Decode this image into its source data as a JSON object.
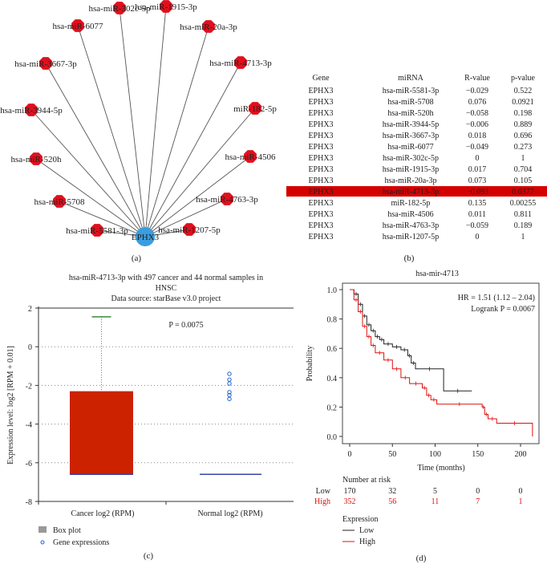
{
  "panel_a": {
    "caption": "(a)",
    "center": "EPHX3",
    "center_color": "#3a9de0",
    "node_color": "#e0101e",
    "nodes": [
      "hsa-miR-302c-5p",
      "hsa-miR-1915-3p",
      "hsa-miR-6077",
      "hsa-miR-20a-3p",
      "hsa-miR-3667-3p",
      "hsa-miR-4713-3p",
      "hsa-miR-3944-5p",
      "miR-182-5p",
      "hsa-miR-520h",
      "hsa-miR-4506",
      "hsa-miR-5708",
      "hsa-miR-4763-3p",
      "hsa-miR-5581-3p",
      "hsa-miR-1207-5p"
    ]
  },
  "panel_b": {
    "caption": "(b)",
    "headers": [
      "Gene",
      "miRNA",
      "R-value",
      "p-value"
    ],
    "highlight_row": 9,
    "highlight_color": "#d40000",
    "rows": [
      [
        "EPHX3",
        "hsa-miR-5581-3p",
        "−0.029",
        "0.522"
      ],
      [
        "EPHX3",
        "hsa-miR-5708",
        "0.076",
        "0.0921"
      ],
      [
        "EPHX3",
        "hsa-miR-520h",
        "−0.058",
        "0.198"
      ],
      [
        "EPHX3",
        "hsa-miR-3944-5p",
        "−0.006",
        "0.889"
      ],
      [
        "EPHX3",
        "hsa-miR-3667-3p",
        "0.018",
        "0.696"
      ],
      [
        "EPHX3",
        "hsa-miR-6077",
        "−0.049",
        "0.273"
      ],
      [
        "EPHX3",
        "hsa-miR-302c-5p",
        "0",
        "1"
      ],
      [
        "EPHX3",
        "hsa-miR-1915-3p",
        "0.017",
        "0.704"
      ],
      [
        "EPHX3",
        "hsa-miR-20a-3p",
        "0.073",
        "0.105"
      ],
      [
        "EPHX3",
        "hsa-miR-4713-3p",
        "−0.093",
        "0.0377"
      ],
      [
        "EPHX3",
        "miR-182-5p",
        "0.135",
        "0.00255"
      ],
      [
        "EPHX3",
        "hsa-miR-4506",
        "0.011",
        "0.811"
      ],
      [
        "EPHX3",
        "hsa-miR-4763-3p",
        "−0.059",
        "0.189"
      ],
      [
        "EPHX3",
        "hsa-miR-1207-5p",
        "0",
        "1"
      ]
    ]
  },
  "chart_data": [
    {
      "type": "box",
      "caption": "(c)",
      "title": [
        "hsa-miR-4713-3p with 497 cancer and 44 normal samples in",
        "HNSC",
        "Data source: starBase v3.0 project"
      ],
      "ylabel": "Expression level: log2 [RPM + 0.01]",
      "ylim": [
        -8,
        2
      ],
      "yticks": [
        "2",
        "0",
        "-2",
        "-4",
        "-6",
        "-8"
      ],
      "grid": "dotted horizontal",
      "annotation": "P = 0.0075",
      "categories": [
        "Cancer log2 (RPM)",
        "Normal log2 (RPM)"
      ],
      "boxes": [
        {
          "q1": -6.6,
          "median": -6.6,
          "q3": -2.3,
          "whisker_high": 1.55,
          "whisker_low": -6.6,
          "color": "#cc2200"
        },
        {
          "q1": -6.6,
          "median": -6.6,
          "q3": -6.6,
          "whisker_high": -6.6,
          "whisker_low": -6.6,
          "color": "#3344aa"
        }
      ],
      "points": {
        "category": 1,
        "values": [
          -1.4,
          -1.7,
          -1.9,
          -2.35,
          -2.5,
          -2.7
        ],
        "color": "#2266cc"
      },
      "legend": [
        "Box plot",
        "Gene expressions"
      ]
    },
    {
      "type": "line",
      "caption": "(d)",
      "title": "hsa-mir-4713",
      "xlabel": "Time (months)",
      "ylabel": "Probability",
      "xlim": [
        0,
        215
      ],
      "ylim": [
        0,
        1
      ],
      "xticks": [
        "0",
        "50",
        "100",
        "150",
        "200"
      ],
      "yticks": [
        "0.0",
        "0.2",
        "0.4",
        "0.6",
        "0.8",
        "1.0"
      ],
      "annotations": [
        "HR = 1.51 (1.12 – 2.04)",
        "Logrank P = 0.0067"
      ],
      "series": [
        {
          "name": "Low",
          "color": "#222222",
          "x": [
            0,
            5,
            10,
            15,
            20,
            25,
            30,
            35,
            40,
            50,
            60,
            68,
            72,
            77,
            110,
            143
          ],
          "y": [
            1,
            0.97,
            0.9,
            0.82,
            0.76,
            0.72,
            0.68,
            0.66,
            0.63,
            0.61,
            0.59,
            0.55,
            0.5,
            0.46,
            0.31,
            0.31
          ]
        },
        {
          "name": "High",
          "color": "#e01010",
          "x": [
            0,
            5,
            10,
            15,
            20,
            25,
            30,
            40,
            50,
            60,
            70,
            85,
            90,
            95,
            102,
            155,
            158,
            162,
            172,
            214,
            214
          ],
          "y": [
            1,
            0.93,
            0.85,
            0.75,
            0.68,
            0.62,
            0.57,
            0.52,
            0.46,
            0.4,
            0.36,
            0.33,
            0.28,
            0.25,
            0.22,
            0.2,
            0.15,
            0.12,
            0.09,
            0.09,
            0
          ]
        }
      ],
      "risk_table": {
        "title": "Number at risk",
        "rows": [
          {
            "label": "Low",
            "values": [
              "170",
              "32",
              "5",
              "0",
              "0"
            ]
          },
          {
            "label": "High",
            "values": [
              "352",
              "56",
              "11",
              "7",
              "1"
            ]
          }
        ]
      },
      "legend": {
        "title": "Expression",
        "items": [
          "Low",
          "High"
        ]
      }
    }
  ]
}
